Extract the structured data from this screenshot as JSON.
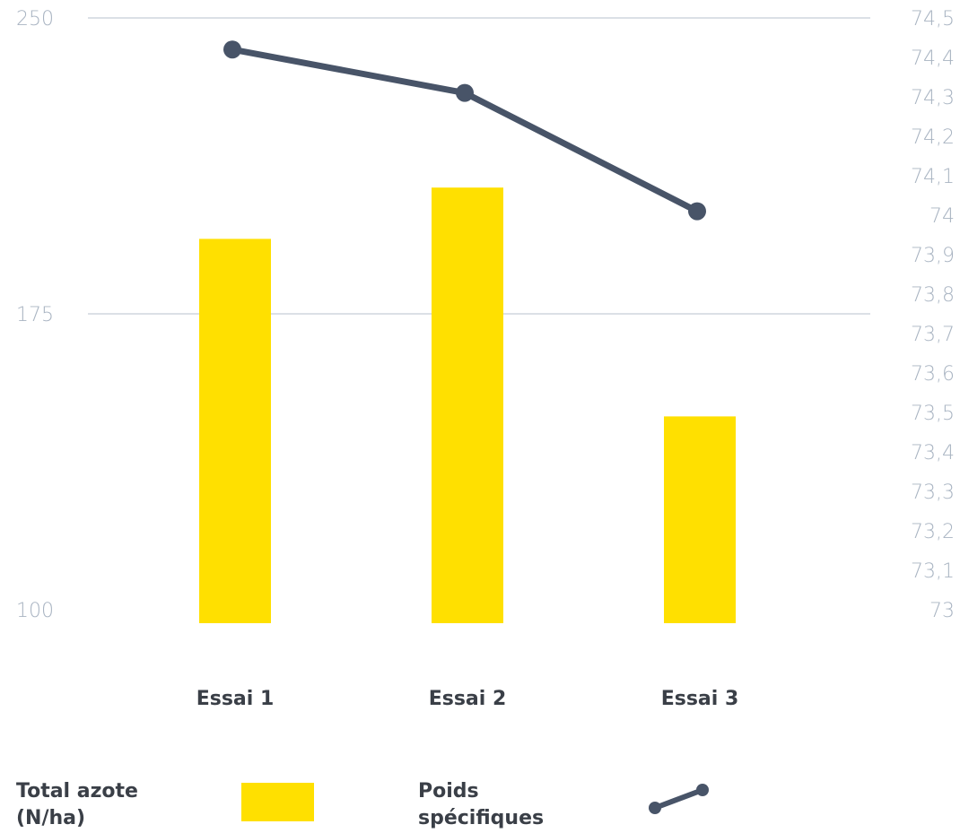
{
  "chart_data": {
    "type": "bar",
    "categories": [
      "Essai 1",
      "Essai 2",
      "Essai 3"
    ],
    "series": [
      {
        "name": "Total azote (N/ha)",
        "type": "bar",
        "axis": "left",
        "values": [
          194,
          207,
          149
        ]
      },
      {
        "name": "Poids spécifiques",
        "type": "line",
        "axis": "right",
        "values": [
          74.42,
          74.31,
          74.01
        ]
      }
    ],
    "y_left": {
      "ylim": [
        100,
        250
      ],
      "ticks": [
        "250",
        "175",
        "100"
      ],
      "tick_values": [
        250,
        175,
        100
      ]
    },
    "y_right": {
      "ylim": [
        73,
        74.5
      ],
      "ticks": [
        "74,5",
        "74,4",
        "74,3",
        "74,2",
        "74,1",
        "74",
        "73,9",
        "73,8",
        "73,7",
        "73,6",
        "73,5",
        "73,4",
        "73,3",
        "73,2",
        "73,1",
        "73"
      ],
      "tick_values": [
        74.5,
        74.4,
        74.3,
        74.2,
        74.1,
        74,
        73.9,
        73.8,
        73.7,
        73.6,
        73.5,
        73.4,
        73.3,
        73.2,
        73.1,
        73
      ]
    },
    "grid": true,
    "legend": {
      "placement": "bottom",
      "items": [
        {
          "label_lines": [
            "Total azote",
            "(N/ha)"
          ],
          "marker": "bar"
        },
        {
          "label_lines": [
            "Poids",
            "spécifiques"
          ],
          "marker": "line"
        }
      ]
    },
    "colors": {
      "bar": "#FFE000",
      "line": "#485468",
      "grid": "#b7c2ce",
      "tick": "#a9b4c2",
      "text": "#3a3f47"
    }
  }
}
